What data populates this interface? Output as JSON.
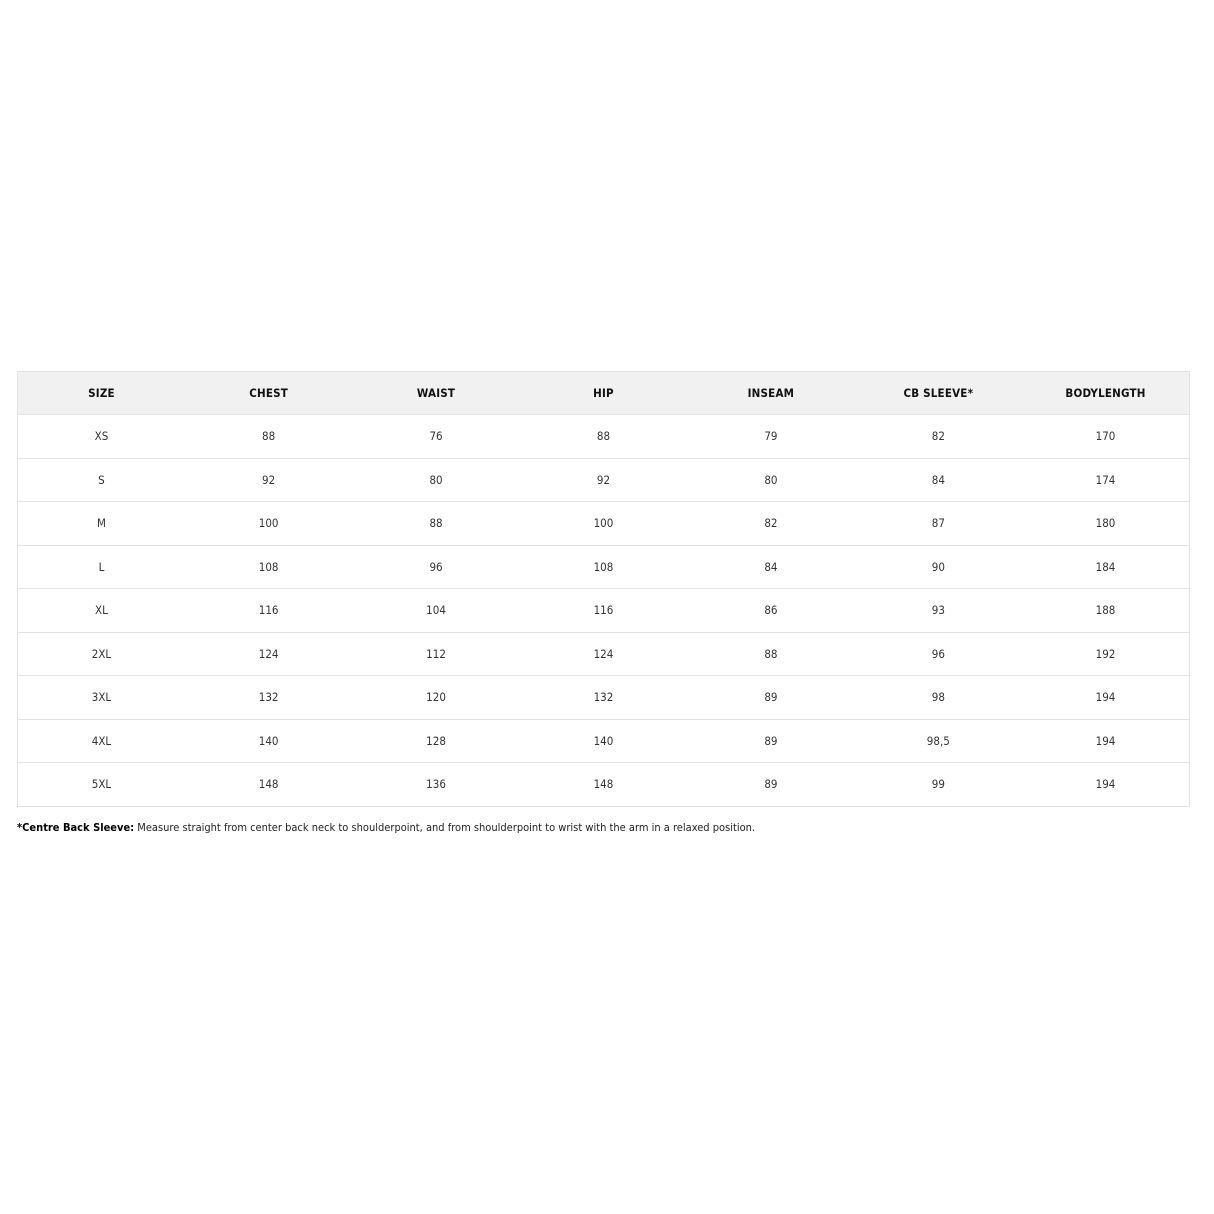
{
  "table": {
    "headers": [
      "SIZE",
      "CHEST",
      "WAIST",
      "HIP",
      "INSEAM",
      "CB SLEEVE*",
      "BODYLENGTH"
    ],
    "rows": [
      [
        "XS",
        "88",
        "76",
        "88",
        "79",
        "82",
        "170"
      ],
      [
        "S",
        "92",
        "80",
        "92",
        "80",
        "84",
        "174"
      ],
      [
        "M",
        "100",
        "88",
        "100",
        "82",
        "87",
        "180"
      ],
      [
        "L",
        "108",
        "96",
        "108",
        "84",
        "90",
        "184"
      ],
      [
        "XL",
        "116",
        "104",
        "116",
        "86",
        "93",
        "188"
      ],
      [
        "2XL",
        "124",
        "112",
        "124",
        "88",
        "96",
        "192"
      ],
      [
        "3XL",
        "132",
        "120",
        "132",
        "89",
        "98",
        "194"
      ],
      [
        "4XL",
        "140",
        "128",
        "140",
        "89",
        "98,5",
        "194"
      ],
      [
        "5XL",
        "148",
        "136",
        "148",
        "89",
        "99",
        "194"
      ]
    ]
  },
  "footnote": {
    "label": "*Centre Back Sleeve:",
    "text": " Measure straight from center back neck to shoulderpoint, and from shoulderpoint to wrist with the arm in a relaxed position."
  }
}
